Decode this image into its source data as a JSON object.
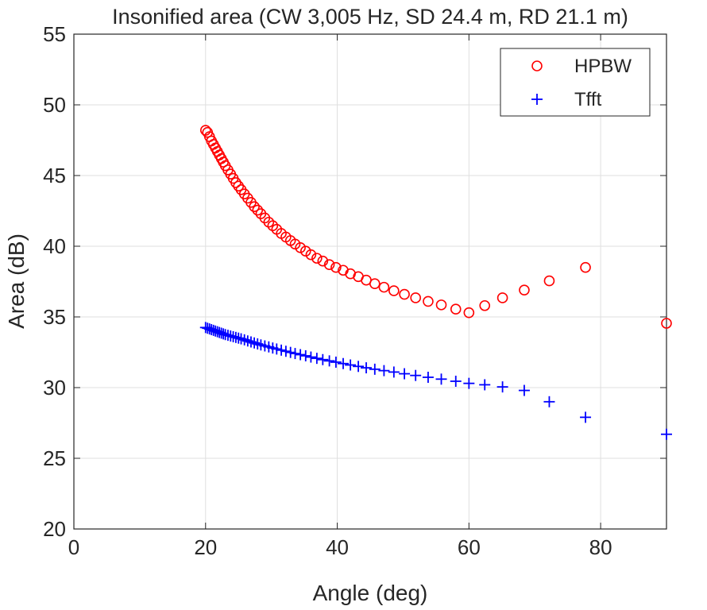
{
  "chart_data": {
    "type": "scatter",
    "title": "Insonified area (CW 3,005 Hz, SD 24.4 m, RD 21.1 m)",
    "xlabel": "Angle (deg)",
    "ylabel": "Area (dB)",
    "xlim": [
      0,
      90
    ],
    "ylim": [
      20,
      55
    ],
    "xticks": [
      0,
      20,
      40,
      60,
      80
    ],
    "yticks": [
      20,
      25,
      30,
      35,
      40,
      45,
      50,
      55
    ],
    "grid": true,
    "legend_position": "top-right",
    "series": [
      {
        "name": "HPBW",
        "marker": "circle",
        "color": "#ff0000",
        "x": [
          20,
          20.3,
          20.6,
          20.9,
          21.2,
          21.5,
          21.8,
          22.1,
          22.4,
          22.7,
          23.0,
          23.4,
          23.8,
          24.2,
          24.6,
          25.0,
          25.4,
          25.9,
          26.4,
          26.9,
          27.4,
          27.9,
          28.4,
          29.0,
          29.6,
          30.2,
          30.8,
          31.5,
          32.2,
          32.9,
          33.6,
          34.4,
          35.2,
          36.0,
          36.9,
          37.8,
          38.8,
          39.8,
          40.9,
          42.0,
          43.2,
          44.4,
          45.7,
          47.1,
          48.6,
          50.2,
          51.9,
          53.8,
          55.8,
          58.0,
          60.0,
          62.4,
          65.1,
          68.4,
          72.2,
          77.7,
          90.0
        ],
        "y": [
          48.2,
          48.05,
          47.75,
          47.45,
          47.2,
          46.95,
          46.7,
          46.45,
          46.2,
          45.95,
          45.7,
          45.4,
          45.1,
          44.8,
          44.5,
          44.25,
          44.0,
          43.7,
          43.4,
          43.1,
          42.8,
          42.55,
          42.3,
          42.0,
          41.7,
          41.45,
          41.2,
          40.9,
          40.65,
          40.4,
          40.15,
          39.9,
          39.65,
          39.4,
          39.15,
          38.95,
          38.7,
          38.5,
          38.3,
          38.05,
          37.85,
          37.6,
          37.35,
          37.1,
          36.85,
          36.6,
          36.35,
          36.1,
          35.85,
          35.55,
          35.3,
          35.8,
          36.35,
          36.9,
          37.55,
          38.5,
          34.55
        ]
      },
      {
        "name": "Tfft",
        "marker": "plus",
        "color": "#0000ff",
        "x": [
          20,
          20.3,
          20.6,
          20.9,
          21.2,
          21.5,
          21.8,
          22.1,
          22.4,
          22.7,
          23.0,
          23.4,
          23.8,
          24.2,
          24.6,
          25.0,
          25.4,
          25.9,
          26.4,
          26.9,
          27.4,
          27.9,
          28.4,
          29.0,
          29.6,
          30.2,
          30.8,
          31.5,
          32.2,
          32.9,
          33.6,
          34.4,
          35.2,
          36.0,
          36.9,
          37.8,
          38.8,
          39.8,
          40.9,
          42.0,
          43.2,
          44.4,
          45.7,
          47.1,
          48.6,
          50.2,
          51.9,
          53.8,
          55.8,
          58.0,
          60.0,
          62.4,
          65.1,
          68.4,
          72.2,
          77.7,
          90.0
        ],
        "y": [
          34.25,
          34.2,
          34.15,
          34.1,
          34.05,
          34.0,
          33.95,
          33.9,
          33.85,
          33.8,
          33.75,
          33.7,
          33.65,
          33.6,
          33.55,
          33.5,
          33.45,
          33.38,
          33.3,
          33.23,
          33.16,
          33.09,
          33.02,
          32.95,
          32.88,
          32.8,
          32.73,
          32.65,
          32.57,
          32.49,
          32.41,
          32.33,
          32.25,
          32.16,
          32.07,
          31.98,
          31.89,
          31.8,
          31.7,
          31.6,
          31.5,
          31.4,
          31.3,
          31.2,
          31.1,
          30.98,
          30.86,
          30.73,
          30.6,
          30.45,
          30.3,
          30.2,
          30.05,
          29.8,
          29.0,
          27.9,
          26.7
        ]
      }
    ]
  }
}
